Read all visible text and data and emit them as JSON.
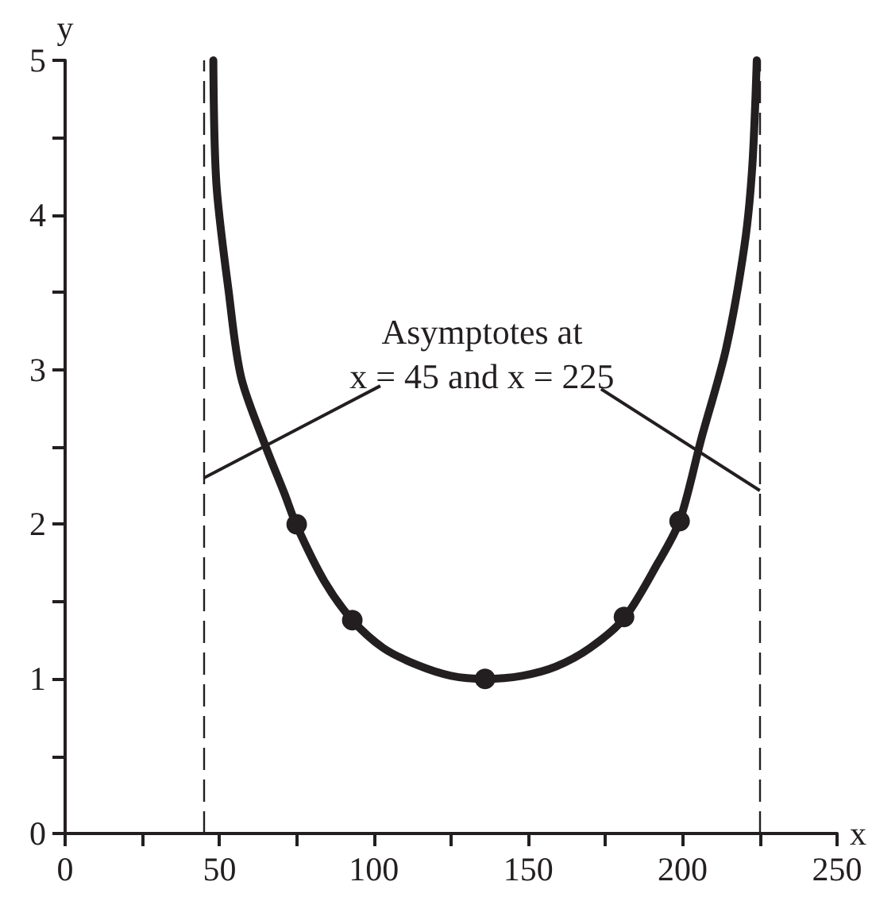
{
  "chart_data": {
    "type": "line",
    "xlabel": "x",
    "ylabel": "y",
    "annotations": [
      {
        "text": "Asymptotes at\nx = 45 and x = 225",
        "x": 45,
        "y": 2.3
      }
    ],
    "series": [
      {
        "marker": "none",
        "line_style": "solid",
        "color": "#231f20",
        "x": [
          48,
          49,
          53,
          57,
          65,
          71,
          75,
          84,
          93,
          103,
          114,
          125,
          136,
          148,
          159,
          170,
          181,
          192,
          199,
          206,
          214,
          220,
          222.5,
          224
        ],
        "values": [
          5,
          4.2,
          3.5,
          2.95,
          2.5,
          2.2,
          1.99,
          1.63,
          1.38,
          1.2,
          1.09,
          1.02,
          1,
          1.02,
          1.08,
          1.2,
          1.39,
          1.75,
          2.02,
          2.55,
          3.13,
          3.8,
          4.3,
          5
        ]
      },
      {
        "type": "scatter",
        "marker": "circle",
        "color": "#231f20",
        "x": [
          75,
          93,
          136,
          181,
          199
        ],
        "values": [
          2,
          1.38,
          1,
          1.4,
          2.02
        ]
      }
    ],
    "ref_lines": [
      {
        "axis": "x",
        "value": 45,
        "color": "#231f20",
        "line_style": "dashed"
      },
      {
        "axis": "x",
        "value": 225,
        "color": "#231f20",
        "line_style": "dashed"
      }
    ],
    "xlim": [
      0,
      250
    ],
    "xticks": [
      0,
      {
        "value": 25,
        "label": null
      },
      50,
      {
        "value": 75,
        "label": null
      },
      100,
      {
        "value": 125,
        "label": null
      },
      150,
      {
        "value": 175,
        "label": null
      },
      200,
      {
        "value": 225,
        "label": null
      },
      250
    ],
    "ylim": [
      0,
      5
    ],
    "yticks": [
      0,
      {
        "value": 0.5,
        "label": null
      },
      1,
      {
        "value": 1.5,
        "label": null
      },
      2,
      {
        "value": 2.5,
        "label": null
      },
      3,
      {
        "value": 3.5,
        "label": null
      },
      4,
      {
        "value": 4.5,
        "label": null
      },
      5
    ],
    "grid": false
  }
}
